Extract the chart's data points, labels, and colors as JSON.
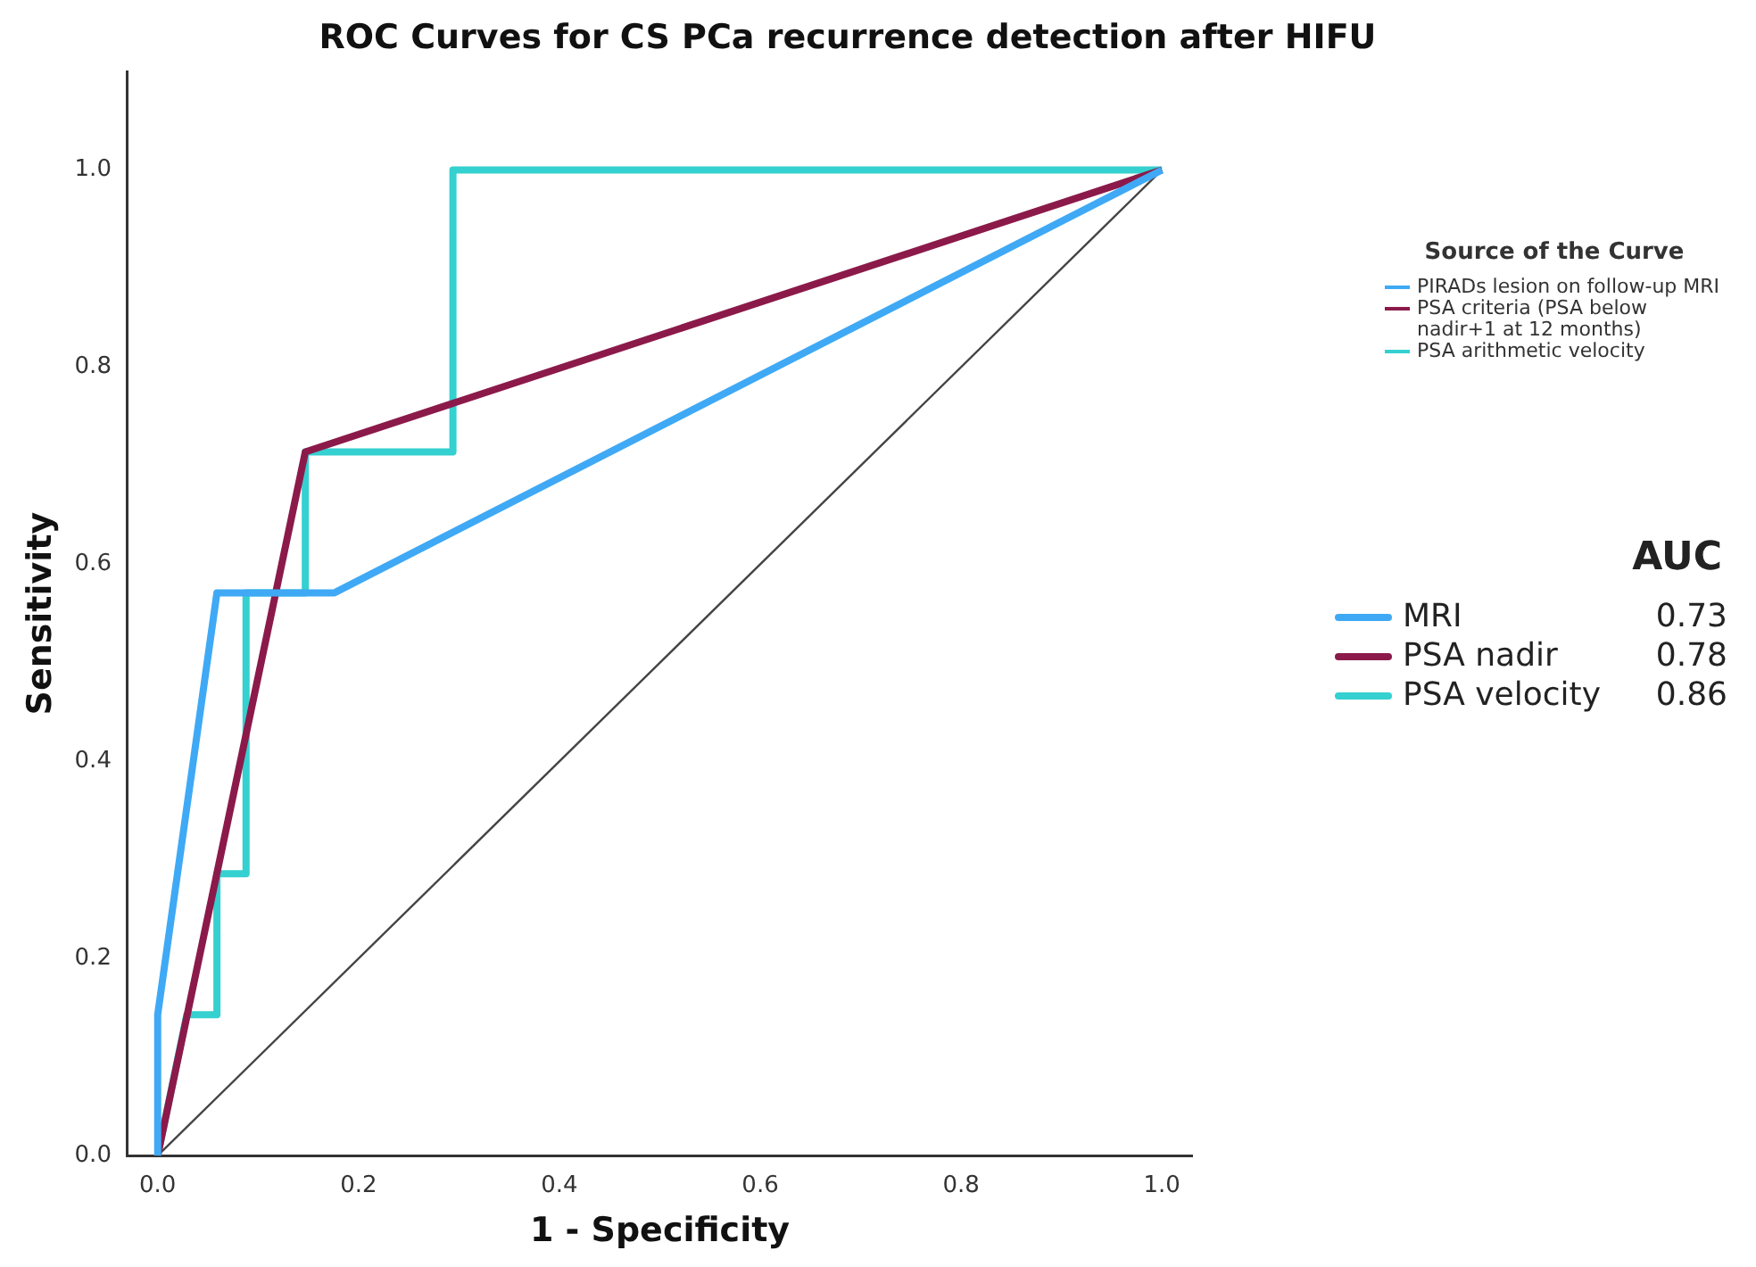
{
  "chart_data": {
    "type": "line",
    "title": "ROC Curves for CS PCa recurrence detection after HIFU",
    "xlabel": "1 - Specificity",
    "ylabel": "Sensitivity",
    "legend_title": "Source of the Curve",
    "legend": "right",
    "marker": "none",
    "line_style": "solid",
    "grid": false,
    "xlim": [
      -0.03,
      1.03
    ],
    "ylim": [
      0,
      1.1
    ],
    "xticks": [
      {
        "value": 0,
        "label": "0.0"
      },
      {
        "value": 0.2,
        "label": "0.2"
      },
      {
        "value": 0.4,
        "label": "0.4"
      },
      {
        "value": 0.6,
        "label": "0.6"
      },
      {
        "value": 0.8,
        "label": "0.8"
      },
      {
        "value": 1,
        "label": "1.0"
      }
    ],
    "yticks": [
      {
        "value": 0,
        "label": "0.0"
      },
      {
        "value": 0.2,
        "label": "0.2"
      },
      {
        "value": 0.4,
        "label": "0.4"
      },
      {
        "value": 0.6,
        "label": "0.6"
      },
      {
        "value": 0.8,
        "label": "0.8"
      },
      {
        "value": 1,
        "label": "1.0"
      }
    ],
    "series": [
      {
        "name": "PIRADs lesion on follow-up MRI",
        "color": "#3fa9f5",
        "x": [
          0,
          0,
          0.059,
          0.176,
          1
        ],
        "values": [
          0,
          0.143,
          0.571,
          0.571,
          1
        ]
      },
      {
        "name": "PSA criteria (PSA below nadir+1 at 12 months)",
        "color": "#8b1a4a",
        "x": [
          0,
          0.147,
          1
        ],
        "values": [
          0,
          0.714,
          1
        ]
      },
      {
        "name": "PSA arithmetic velocity",
        "color": "#35d0d0",
        "x": [
          0,
          0.029,
          0.059,
          0.059,
          0.088,
          0.088,
          0.147,
          0.147,
          0.294,
          0.294,
          1
        ],
        "values": [
          0,
          0.143,
          0.143,
          0.286,
          0.286,
          0.571,
          0.571,
          0.714,
          0.714,
          1,
          1
        ]
      },
      {
        "color": "#444444",
        "x": [
          0,
          1
        ],
        "values": [
          0,
          1
        ]
      }
    ],
    "annotations": [
      "AUC",
      "MRI 0.73",
      "PSA nadir 0.78",
      "PSA velocity 0.86"
    ]
  }
}
